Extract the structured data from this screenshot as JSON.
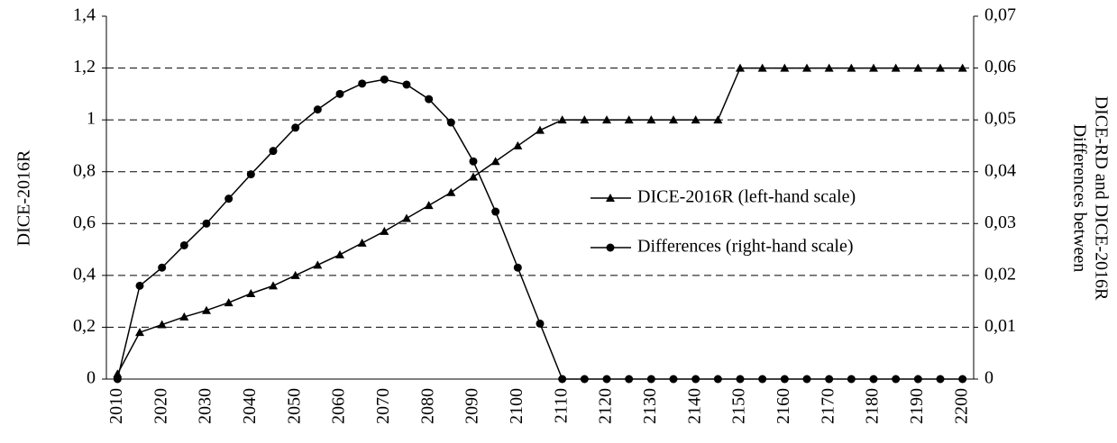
{
  "chart_data": {
    "type": "line",
    "categories": [
      "2010",
      null,
      "2020",
      null,
      "2030",
      null,
      "2040",
      null,
      "2050",
      null,
      "2060",
      null,
      "2070",
      null,
      "2080",
      null,
      "2090",
      null,
      "2100",
      null,
      "2110",
      null,
      "2120",
      null,
      "2130",
      null,
      "2140",
      null,
      "2150",
      null,
      "2160",
      null,
      "2170",
      null,
      "2180",
      null,
      "2190",
      null,
      "2200"
    ],
    "ylabel": "DICE-2016R",
    "y2label": [
      "Differences between",
      "DICE-RD and DICE-2016R"
    ],
    "ylim": [
      0,
      1.4
    ],
    "yticks": [
      0,
      {
        "value": 0.2,
        "label": "0,2"
      },
      {
        "value": 0.4,
        "label": "0,4"
      },
      {
        "value": 0.6,
        "label": "0,6"
      },
      {
        "value": 0.8,
        "label": "0,8"
      },
      1,
      {
        "value": 1.2,
        "label": "1,2"
      },
      {
        "value": 1.4,
        "label": "1,4"
      }
    ],
    "y2lim": [
      0,
      0.07
    ],
    "y2ticks": [
      0,
      {
        "value": 0.01,
        "label": "0,01"
      },
      {
        "value": 0.02,
        "label": "0,02"
      },
      {
        "value": 0.03,
        "label": "0,03"
      },
      {
        "value": 0.04,
        "label": "0,04"
      },
      {
        "value": 0.05,
        "label": "0,05"
      },
      {
        "value": 0.06,
        "label": "0,06"
      },
      {
        "value": 0.07,
        "label": "0,07"
      }
    ],
    "grid": true,
    "legend": "right",
    "series": [
      {
        "name": "DICE-2016R (left-hand scale)",
        "color": "#000000",
        "marker": "triangle",
        "values": [
          0.02,
          0.18,
          0.21,
          0.24,
          0.265,
          0.295,
          0.33,
          0.36,
          0.4,
          0.44,
          0.48,
          0.525,
          0.57,
          0.62,
          0.67,
          0.72,
          0.78,
          0.84,
          0.9,
          0.96,
          1.0,
          1.0,
          1.0,
          1.0,
          1.0,
          1.0,
          1.0,
          1.0,
          1.2,
          1.2,
          1.2,
          1.2,
          1.2,
          1.2,
          1.2,
          1.2,
          1.2,
          1.2,
          1.2
        ]
      },
      {
        "name": "Differences (right-hand scale)",
        "color": "#000000",
        "marker": "circle",
        "axis": "y2",
        "values": [
          0,
          0.018,
          0.0215,
          0.0258,
          0.03,
          0.0348,
          0.0395,
          0.044,
          0.0485,
          0.052,
          0.055,
          0.057,
          0.0578,
          0.0568,
          0.054,
          0.0495,
          0.042,
          0.0323,
          0.0215,
          0.0107,
          0,
          0,
          0,
          0,
          0,
          0,
          0,
          0,
          0,
          0,
          0,
          0,
          0,
          0,
          0,
          0,
          0,
          0,
          0
        ]
      }
    ]
  }
}
